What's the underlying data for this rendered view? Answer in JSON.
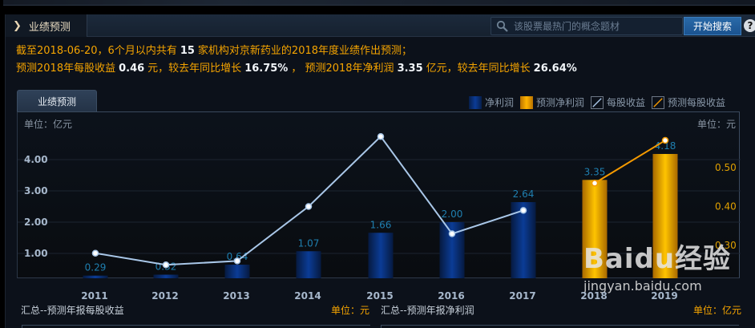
{
  "header": {
    "tab_label": "业绩预测",
    "search_placeholder": "该股票最热门的概念题材",
    "search_button": "开始搜索",
    "help_icon": "?"
  },
  "summary": {
    "line1_a": "截至2018-06-20，6个月以内共有",
    "line1_count": "15",
    "line1_b": "家机构对京新药业的2018年度业绩作出预测；",
    "line2_a": "预测2018年每股收益",
    "line2_eps": "0.46",
    "line2_b": "元，较去年同比增长",
    "line2_eps_growth": "16.75%",
    "line2_c": "，  预测2018年净利润",
    "line2_profit": "3.35",
    "line2_d": "亿元，较去年同比增长",
    "line2_profit_growth": "26.64%"
  },
  "chart_tab": "业绩预测",
  "legend": {
    "net_profit": "净利润",
    "forecast_net_profit": "预测净利润",
    "eps": "每股收益",
    "forecast_eps": "预测每股收益"
  },
  "axes": {
    "left_unit": "单位：亿元",
    "right_unit": "单位：元"
  },
  "bottom": {
    "left_title": "汇总--预测年报每股收益",
    "left_unit": "单位：元",
    "right_title": "汇总--预测年报净利润",
    "right_unit": "单位：亿元"
  },
  "watermark": {
    "brand": "Baidu经验",
    "url": "jingyan.baidu.com"
  },
  "colors": {
    "summary_text": "#f5a400",
    "bar_actual": "#0b3c96",
    "bar_forecast": "#ffb400",
    "eps_line": "#a9c7e8",
    "forecast_eps_line": "#f59a00",
    "value_label": "#1f7fb0",
    "right_axis": "#e0a000"
  },
  "chart_data": {
    "type": "bar",
    "title": "业绩预测",
    "categories": [
      "2011",
      "2012",
      "2013",
      "2014",
      "2015",
      "2016",
      "2017",
      "2018",
      "2019"
    ],
    "series": [
      {
        "name": "净利润",
        "type": "bar",
        "axis": "left",
        "values": [
          0.29,
          0.32,
          0.64,
          1.07,
          1.66,
          2.0,
          2.64,
          null,
          null
        ]
      },
      {
        "name": "预测净利润",
        "type": "bar",
        "axis": "left",
        "values": [
          null,
          null,
          null,
          null,
          null,
          null,
          null,
          3.35,
          4.18
        ]
      },
      {
        "name": "每股收益",
        "type": "line",
        "axis": "right",
        "values": [
          0.28,
          0.25,
          0.26,
          0.4,
          0.58,
          0.33,
          0.39,
          null,
          null
        ]
      },
      {
        "name": "预测每股收益",
        "type": "line",
        "axis": "right",
        "values": [
          null,
          null,
          null,
          null,
          null,
          null,
          null,
          0.46,
          0.57
        ]
      }
    ],
    "left_axis": {
      "label": "单位：亿元",
      "ticks": [
        "1.00",
        "2.00",
        "3.00",
        "4.00"
      ],
      "range": [
        0,
        4.6
      ]
    },
    "right_axis": {
      "label": "单位：元",
      "ticks": [
        "0.30",
        "0.40",
        "0.50"
      ],
      "range": [
        0.21,
        0.63
      ]
    },
    "grid": true,
    "legend_position": "top-right"
  }
}
